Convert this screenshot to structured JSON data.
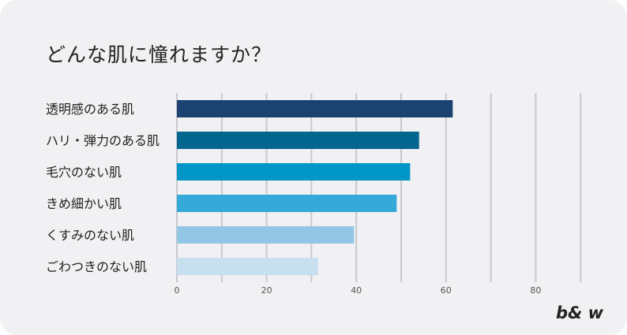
{
  "title": "どんな肌に憧れますか？",
  "brand": "b& w",
  "colors": [
    "#1b4271",
    "#03668f",
    "#0097c8",
    "#35a9d8",
    "#93c6e4",
    "#c8dff0"
  ],
  "chart_data": {
    "type": "bar",
    "orientation": "horizontal",
    "categories": [
      "透明感のある肌",
      "ハリ・弾力のある肌",
      "毛穴のない肌",
      "きめ細かい肌",
      "くすみのない肌",
      "ごわつきのない肌"
    ],
    "values": [
      61.5,
      54,
      52,
      49,
      39.5,
      31.5
    ],
    "xlim": [
      0,
      90
    ],
    "xticks": [
      0,
      20,
      40,
      60,
      80
    ],
    "xtick_labels": [
      "0",
      "20",
      "40",
      "60",
      "80"
    ],
    "grid": true
  }
}
